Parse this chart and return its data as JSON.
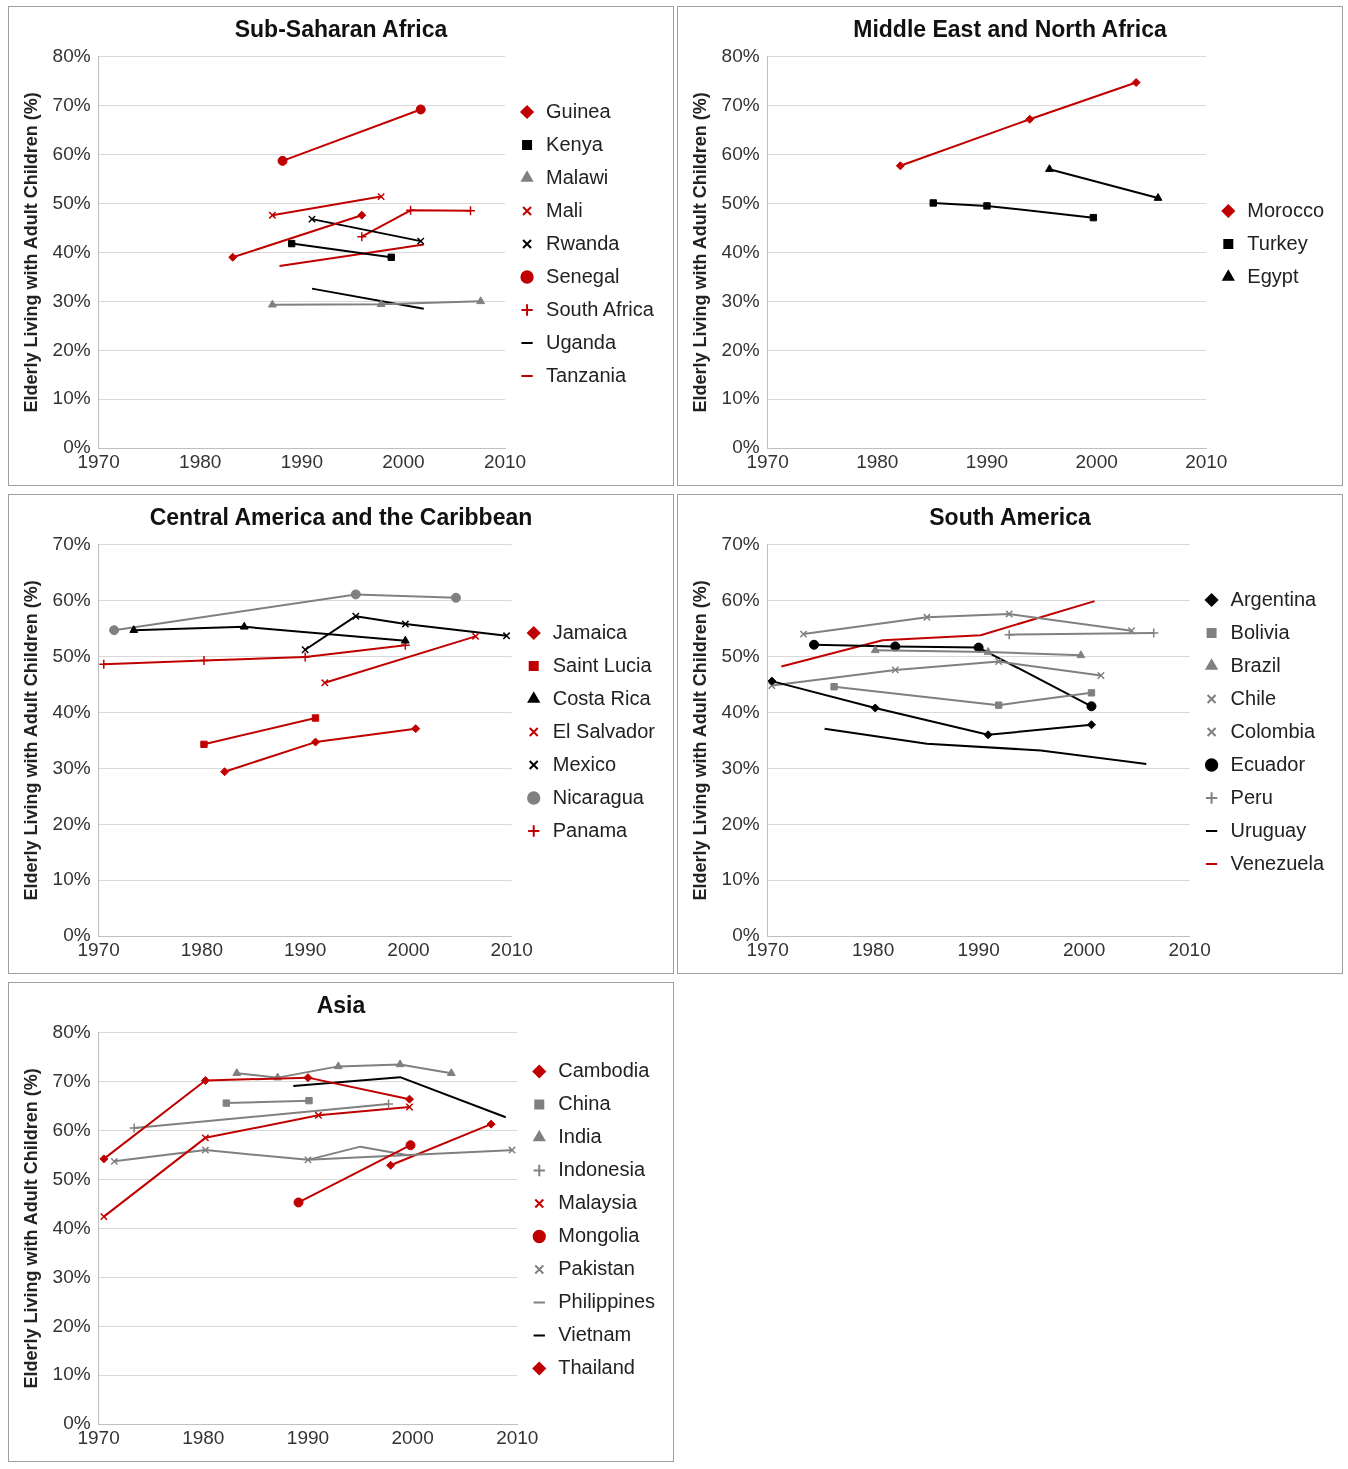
{
  "chart_data": [
    {
      "type": "line",
      "title": "Sub-Saharan Africa",
      "ylabel": "Elderly Living with Adult Children (%)",
      "xlim": [
        1970,
        2010
      ],
      "xticks": [
        1970,
        1980,
        1990,
        2000,
        2010
      ],
      "ylim": [
        0,
        80
      ],
      "yticks": [
        {
          "value": 0,
          "label": "0%"
        },
        {
          "value": 10,
          "label": "10%"
        },
        {
          "value": 20,
          "label": "20%"
        },
        {
          "value": 30,
          "label": "30%"
        },
        {
          "value": 40,
          "label": "40%"
        },
        {
          "value": 50,
          "label": "50%"
        },
        {
          "value": 60,
          "label": "60%"
        },
        {
          "value": 70,
          "label": "70%"
        },
        {
          "value": 80,
          "label": "80%"
        }
      ],
      "grid": "y",
      "legend": "right",
      "series": [
        {
          "name": "Guinea",
          "color": "#c00000",
          "marker": "diamond",
          "x": [
            1983.2,
            1995.9
          ],
          "values": [
            39.0,
            47.6
          ]
        },
        {
          "name": "Kenya",
          "color": "#000000",
          "marker": "square",
          "x": [
            1989.0,
            1998.8
          ],
          "values": [
            41.8,
            39.0
          ]
        },
        {
          "name": "Malawi",
          "color": "#808080",
          "marker": "triangle",
          "x": [
            1987.1,
            1997.8,
            2007.6
          ],
          "values": [
            29.3,
            29.4,
            30.0
          ]
        },
        {
          "name": "Mali",
          "color": "#c00000",
          "marker": "cross",
          "x": [
            1987.1,
            1997.8
          ],
          "values": [
            47.6,
            51.4
          ]
        },
        {
          "name": "Rwanda",
          "color": "#000000",
          "marker": "cross",
          "x": [
            1991.0,
            2001.7
          ],
          "values": [
            46.8,
            42.3
          ]
        },
        {
          "name": "Senegal",
          "color": "#c00000",
          "marker": "circle",
          "x": [
            1988.1,
            2001.7
          ],
          "values": [
            58.7,
            69.2
          ]
        },
        {
          "name": "South Africa",
          "color": "#c00000",
          "marker": "plus",
          "x": [
            1995.9,
            2000.7,
            2006.6
          ],
          "values": [
            43.2,
            48.6,
            48.5
          ]
        },
        {
          "name": "Uganda",
          "color": "#000000",
          "marker": "none",
          "x": [
            1991.0,
            2002.0
          ],
          "values": [
            32.6,
            28.5
          ]
        },
        {
          "name": "Tanzania",
          "color": "#c00000",
          "marker": "none",
          "x": [
            1987.8,
            2002.0
          ],
          "values": [
            37.2,
            41.6
          ]
        }
      ]
    },
    {
      "type": "line",
      "title": "Middle East and North Africa",
      "ylabel": "Elderly Living with Adult Children (%)",
      "xlim": [
        1970,
        2010
      ],
      "xticks": [
        1970,
        1980,
        1990,
        2000,
        2010
      ],
      "ylim": [
        0,
        80
      ],
      "yticks": [
        {
          "value": 0,
          "label": "0%"
        },
        {
          "value": 10,
          "label": "10%"
        },
        {
          "value": 20,
          "label": "20%"
        },
        {
          "value": 30,
          "label": "30%"
        },
        {
          "value": 40,
          "label": "40%"
        },
        {
          "value": 50,
          "label": "50%"
        },
        {
          "value": 60,
          "label": "60%"
        },
        {
          "value": 70,
          "label": "70%"
        },
        {
          "value": 80,
          "label": "80%"
        }
      ],
      "grid": "y",
      "legend": "right",
      "series": [
        {
          "name": "Morocco",
          "color": "#c00000",
          "marker": "diamond",
          "x": [
            1982.1,
            1993.9,
            2003.6
          ],
          "values": [
            57.7,
            67.2,
            74.7
          ]
        },
        {
          "name": "Turkey",
          "color": "#000000",
          "marker": "square",
          "x": [
            1985.1,
            1990.0,
            1999.7
          ],
          "values": [
            50.1,
            49.5,
            47.1
          ]
        },
        {
          "name": "Egypt",
          "color": "#000000",
          "marker": "triangle",
          "x": [
            1995.7,
            2005.6
          ],
          "values": [
            57.0,
            51.1
          ]
        }
      ]
    },
    {
      "type": "line",
      "title": "Central America and the Caribbean",
      "ylabel": "Elderly Living with Adult Children (%)",
      "xlim": [
        1970,
        2010
      ],
      "xticks": [
        1970,
        1980,
        1990,
        2000,
        2010
      ],
      "ylim": [
        0,
        70
      ],
      "yticks": [
        {
          "value": 0,
          "label": "0%"
        },
        {
          "value": 10,
          "label": "10%"
        },
        {
          "value": 20,
          "label": "20%"
        },
        {
          "value": 30,
          "label": "30%"
        },
        {
          "value": 40,
          "label": "40%"
        },
        {
          "value": 50,
          "label": "50%"
        },
        {
          "value": 60,
          "label": "60%"
        },
        {
          "value": 70,
          "label": "70%"
        }
      ],
      "grid": "y",
      "legend": "right",
      "series": [
        {
          "name": "Jamaica",
          "color": "#c00000",
          "marker": "diamond",
          "x": [
            1982.2,
            1991.0,
            2000.7
          ],
          "values": [
            29.4,
            34.7,
            37.1
          ]
        },
        {
          "name": "Saint Lucia",
          "color": "#c00000",
          "marker": "square",
          "x": [
            1980.2,
            1991.0
          ],
          "values": [
            34.3,
            39.0
          ]
        },
        {
          "name": "Costa Rica",
          "color": "#000000",
          "marker": "triangle",
          "x": [
            1973.4,
            1984.1,
            1999.7
          ],
          "values": [
            54.7,
            55.3,
            52.8
          ]
        },
        {
          "name": "El Salvador",
          "color": "#c00000",
          "marker": "cross",
          "x": [
            1991.9,
            2006.5
          ],
          "values": [
            45.3,
            53.6
          ]
        },
        {
          "name": "Mexico",
          "color": "#000000",
          "marker": "cross",
          "x": [
            1990.0,
            1994.9,
            1999.7,
            2009.5
          ],
          "values": [
            51.2,
            57.2,
            55.8,
            53.7
          ]
        },
        {
          "name": "Nicaragua",
          "color": "#808080",
          "marker": "circle",
          "x": [
            1971.5,
            1994.9,
            2004.6
          ],
          "values": [
            54.7,
            61.1,
            60.5
          ]
        },
        {
          "name": "Panama",
          "color": "#c00000",
          "marker": "plus",
          "x": [
            1970.5,
            1980.2,
            1990.0,
            1999.7
          ],
          "values": [
            48.6,
            49.3,
            49.9,
            52.0
          ]
        }
      ]
    },
    {
      "type": "line",
      "title": "South America",
      "ylabel": "Elderly Living with Adult Children (%)",
      "xlim": [
        1970,
        2010
      ],
      "xticks": [
        1970,
        1980,
        1990,
        2000,
        2010
      ],
      "ylim": [
        0,
        70
      ],
      "yticks": [
        {
          "value": 0,
          "label": "0%"
        },
        {
          "value": 10,
          "label": "10%"
        },
        {
          "value": 20,
          "label": "20%"
        },
        {
          "value": 30,
          "label": "30%"
        },
        {
          "value": 40,
          "label": "40%"
        },
        {
          "value": 50,
          "label": "50%"
        },
        {
          "value": 60,
          "label": "60%"
        },
        {
          "value": 70,
          "label": "70%"
        }
      ],
      "grid": "y",
      "legend": "right",
      "series": [
        {
          "name": "Argentina",
          "color": "#000000",
          "marker": "diamond",
          "x": [
            1970.4,
            1980.2,
            1990.9,
            2000.7
          ],
          "values": [
            45.6,
            40.8,
            36.0,
            37.8
          ]
        },
        {
          "name": "Bolivia",
          "color": "#808080",
          "marker": "square",
          "x": [
            1976.3,
            1991.9,
            2000.7
          ],
          "values": [
            44.6,
            41.3,
            43.5
          ]
        },
        {
          "name": "Brazil",
          "color": "#808080",
          "marker": "triangle",
          "x": [
            1980.2,
            1990.9,
            1999.7
          ],
          "values": [
            51.1,
            50.8,
            50.2
          ]
        },
        {
          "name": "Chile",
          "color": "#808080",
          "marker": "cross",
          "x": [
            1970.4,
            1982.1,
            1991.9,
            2001.6
          ],
          "values": [
            44.8,
            47.6,
            49.1,
            46.6
          ]
        },
        {
          "name": "Colombia",
          "color": "#808080",
          "marker": "cross",
          "x": [
            1973.4,
            1985.1,
            1992.9,
            2004.5
          ],
          "values": [
            54.0,
            57.0,
            57.6,
            54.6
          ]
        },
        {
          "name": "Ecuador",
          "color": "#000000",
          "marker": "circle",
          "x": [
            1974.4,
            1982.1,
            1990.0,
            2000.7
          ],
          "values": [
            52.1,
            51.8,
            51.6,
            41.1
          ]
        },
        {
          "name": "Peru",
          "color": "#808080",
          "marker": "plus",
          "x": [
            1992.9,
            2006.6
          ],
          "values": [
            53.9,
            54.2
          ]
        },
        {
          "name": "Uruguay",
          "color": "#000000",
          "marker": "none",
          "x": [
            1975.4,
            1985.1,
            1995.9,
            2005.9
          ],
          "values": [
            37.1,
            34.4,
            33.2,
            30.8
          ]
        },
        {
          "name": "Venezuela",
          "color": "#c00000",
          "marker": "none",
          "x": [
            1971.3,
            1980.9,
            1990.2,
            2001.0
          ],
          "values": [
            48.2,
            52.9,
            53.8,
            59.9
          ]
        }
      ]
    },
    {
      "type": "line",
      "title": "Asia",
      "ylabel": "Elderly Living with Adult Children (%)",
      "xlim": [
        1970,
        2010
      ],
      "xticks": [
        1970,
        1980,
        1990,
        2000,
        2010
      ],
      "ylim": [
        0,
        80
      ],
      "yticks": [
        {
          "value": 0,
          "label": "0%"
        },
        {
          "value": 10,
          "label": "10%"
        },
        {
          "value": 20,
          "label": "20%"
        },
        {
          "value": 30,
          "label": "30%"
        },
        {
          "value": 40,
          "label": "40%"
        },
        {
          "value": 50,
          "label": "50%"
        },
        {
          "value": 60,
          "label": "60%"
        },
        {
          "value": 70,
          "label": "70%"
        },
        {
          "value": 80,
          "label": "80%"
        }
      ],
      "grid": "y",
      "legend": "right",
      "series": [
        {
          "name": "Cambodia",
          "color": "#c00000",
          "marker": "diamond",
          "x": [
            1970.5,
            1980.2,
            1990.0,
            1999.7
          ],
          "values": [
            54.2,
            70.2,
            70.8,
            66.4
          ]
        },
        {
          "name": "China",
          "color": "#808080",
          "marker": "square",
          "x": [
            1982.2,
            1990.1
          ],
          "values": [
            65.6,
            66.1
          ]
        },
        {
          "name": "India",
          "color": "#808080",
          "marker": "triangle",
          "x": [
            1983.2,
            1987.1,
            1992.9,
            1998.8,
            2003.7
          ],
          "values": [
            71.7,
            70.8,
            73.1,
            73.5,
            71.7
          ]
        },
        {
          "name": "Indonesia",
          "color": "#808080",
          "marker": "plus",
          "x": [
            1973.4,
            1997.7
          ],
          "values": [
            60.5,
            65.4
          ]
        },
        {
          "name": "Malaysia",
          "color": "#c00000",
          "marker": "cross",
          "x": [
            1970.5,
            1980.2,
            1991.0,
            1999.7
          ],
          "values": [
            42.4,
            58.5,
            63.1,
            64.8
          ]
        },
        {
          "name": "Mongolia",
          "color": "#c00000",
          "marker": "circle",
          "x": [
            1989.1,
            1999.8
          ],
          "values": [
            45.3,
            57.0
          ]
        },
        {
          "name": "Pakistan",
          "color": "#808080",
          "marker": "cross",
          "x": [
            1971.5,
            1980.2,
            1990.0,
            2009.5
          ],
          "values": [
            53.7,
            56.0,
            54.0,
            56.0
          ]
        },
        {
          "name": "Philippines",
          "color": "#808080",
          "marker": "none",
          "x": [
            1990.0,
            1995.0,
            1999.7
          ],
          "values": [
            54.0,
            56.7,
            54.9
          ]
        },
        {
          "name": "Vietnam",
          "color": "#000000",
          "marker": "none",
          "x": [
            1988.6,
            1998.8,
            2008.9
          ],
          "values": [
            69.1,
            70.9,
            62.7
          ]
        },
        {
          "name": "Thailand",
          "color": "#c00000",
          "marker": "diamond",
          "x": [
            1997.9,
            2007.5
          ],
          "values": [
            52.9,
            61.3
          ]
        }
      ]
    }
  ]
}
